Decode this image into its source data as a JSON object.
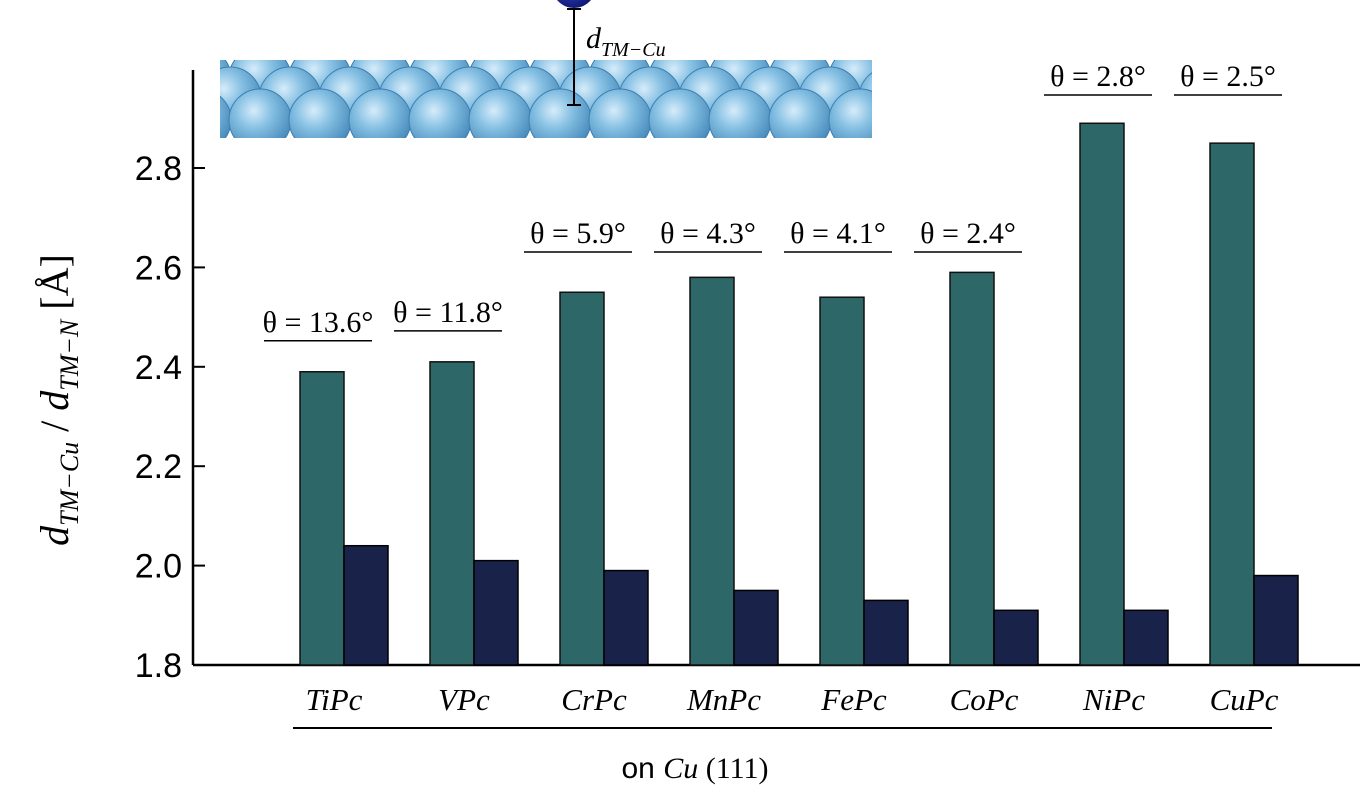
{
  "chart_data": {
    "type": "bar",
    "categories": [
      "TiPc",
      "VPc",
      "CrPc",
      "MnPc",
      "FePc",
      "CoPc",
      "NiPc",
      "CuPc"
    ],
    "series": [
      {
        "name": "d_TM-Cu",
        "values": [
          2.39,
          2.41,
          2.55,
          2.58,
          2.54,
          2.59,
          2.89,
          2.85
        ]
      },
      {
        "name": "d_TM-N",
        "values": [
          2.04,
          2.01,
          1.99,
          1.95,
          1.93,
          1.91,
          1.91,
          1.98
        ]
      }
    ],
    "annotations": [
      "θ = 13.6°",
      "θ = 11.8°",
      "θ = 5.9°",
      "θ = 4.3°",
      "θ = 4.1°",
      "θ = 2.4°",
      "θ = 2.8°",
      "θ = 2.5°"
    ],
    "ylabel": "d_TM−Cu / d_TM−N [Å]",
    "xlabel": "on Cu (111)",
    "ylim": [
      1.8,
      3.0
    ],
    "yticks": [
      1.8,
      2.0,
      2.2,
      2.4,
      2.6,
      2.8
    ],
    "inset_label": "d_TM−Cu",
    "colors": {
      "series_1": "#2e6767",
      "series_2": "#19234a",
      "inset_atoms": "#7ab8dd",
      "inset_tm": "#1d2ba0"
    },
    "grid": false
  }
}
